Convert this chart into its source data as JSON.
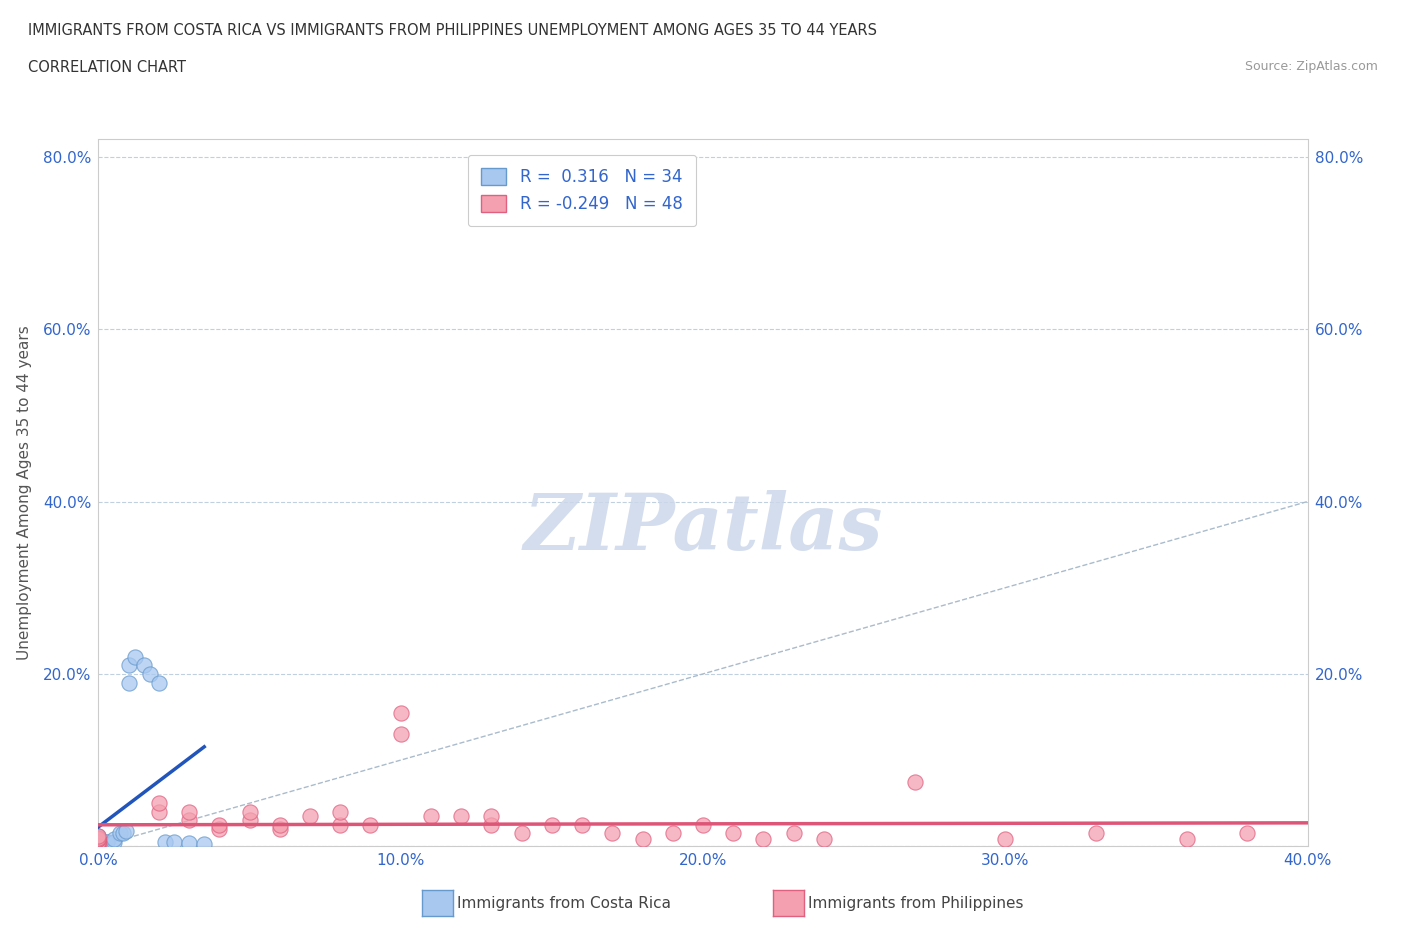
{
  "title_line1": "IMMIGRANTS FROM COSTA RICA VS IMMIGRANTS FROM PHILIPPINES UNEMPLOYMENT AMONG AGES 35 TO 44 YEARS",
  "title_line2": "CORRELATION CHART",
  "source_text": "Source: ZipAtlas.com",
  "ylabel": "Unemployment Among Ages 35 to 44 years",
  "xlim": [
    0,
    0.4
  ],
  "ylim": [
    0,
    0.82
  ],
  "xticks": [
    0.0,
    0.1,
    0.2,
    0.3,
    0.4
  ],
  "yticks": [
    0.0,
    0.2,
    0.4,
    0.6,
    0.8
  ],
  "xticklabels": [
    "0.0%",
    "10.0%",
    "20.0%",
    "30.0%",
    "40.0%"
  ],
  "yticklabels": [
    "",
    "20.0%",
    "40.0%",
    "60.0%",
    "80.0%"
  ],
  "costa_rica_color": "#a8c8f0",
  "philippines_color": "#f4a0b0",
  "costa_rica_edge": "#6699cc",
  "philippines_edge": "#e06080",
  "regression_blue": "#2255bb",
  "regression_pink": "#dd5577",
  "diagonal_color": "#aabbcc",
  "watermark_color": "#ccd8ea",
  "R_blue": 0.316,
  "N_blue": 34,
  "R_pink": -0.249,
  "N_pink": 48,
  "costa_rica_x": [
    0.0,
    0.0,
    0.0,
    0.0,
    0.0,
    0.0,
    0.0,
    0.0,
    0.0,
    0.0,
    0.0,
    0.0,
    0.0,
    0.0,
    0.0,
    0.0,
    0.0,
    0.003,
    0.003,
    0.005,
    0.005,
    0.007,
    0.008,
    0.009,
    0.01,
    0.01,
    0.012,
    0.015,
    0.017,
    0.02,
    0.022,
    0.025,
    0.03,
    0.035
  ],
  "costa_rica_y": [
    0.0,
    0.0,
    0.0,
    0.0,
    0.002,
    0.003,
    0.003,
    0.004,
    0.005,
    0.005,
    0.006,
    0.007,
    0.008,
    0.009,
    0.01,
    0.01,
    0.012,
    0.005,
    0.005,
    0.005,
    0.008,
    0.015,
    0.015,
    0.018,
    0.19,
    0.21,
    0.22,
    0.21,
    0.2,
    0.19,
    0.005,
    0.005,
    0.004,
    0.003
  ],
  "philippines_x": [
    0.0,
    0.0,
    0.0,
    0.0,
    0.0,
    0.0,
    0.0,
    0.0,
    0.0,
    0.0,
    0.0,
    0.0,
    0.02,
    0.02,
    0.03,
    0.03,
    0.04,
    0.04,
    0.05,
    0.05,
    0.06,
    0.06,
    0.07,
    0.08,
    0.08,
    0.09,
    0.1,
    0.1,
    0.11,
    0.12,
    0.13,
    0.13,
    0.14,
    0.15,
    0.16,
    0.17,
    0.18,
    0.19,
    0.2,
    0.21,
    0.22,
    0.23,
    0.24,
    0.27,
    0.3,
    0.33,
    0.36,
    0.38
  ],
  "philippines_y": [
    0.0,
    0.0,
    0.005,
    0.005,
    0.005,
    0.005,
    0.005,
    0.008,
    0.008,
    0.008,
    0.01,
    0.012,
    0.04,
    0.05,
    0.03,
    0.04,
    0.02,
    0.025,
    0.03,
    0.04,
    0.02,
    0.025,
    0.035,
    0.025,
    0.04,
    0.025,
    0.155,
    0.13,
    0.035,
    0.035,
    0.025,
    0.035,
    0.015,
    0.025,
    0.025,
    0.015,
    0.008,
    0.015,
    0.025,
    0.015,
    0.008,
    0.015,
    0.008,
    0.075,
    0.008,
    0.015,
    0.008,
    0.015
  ]
}
